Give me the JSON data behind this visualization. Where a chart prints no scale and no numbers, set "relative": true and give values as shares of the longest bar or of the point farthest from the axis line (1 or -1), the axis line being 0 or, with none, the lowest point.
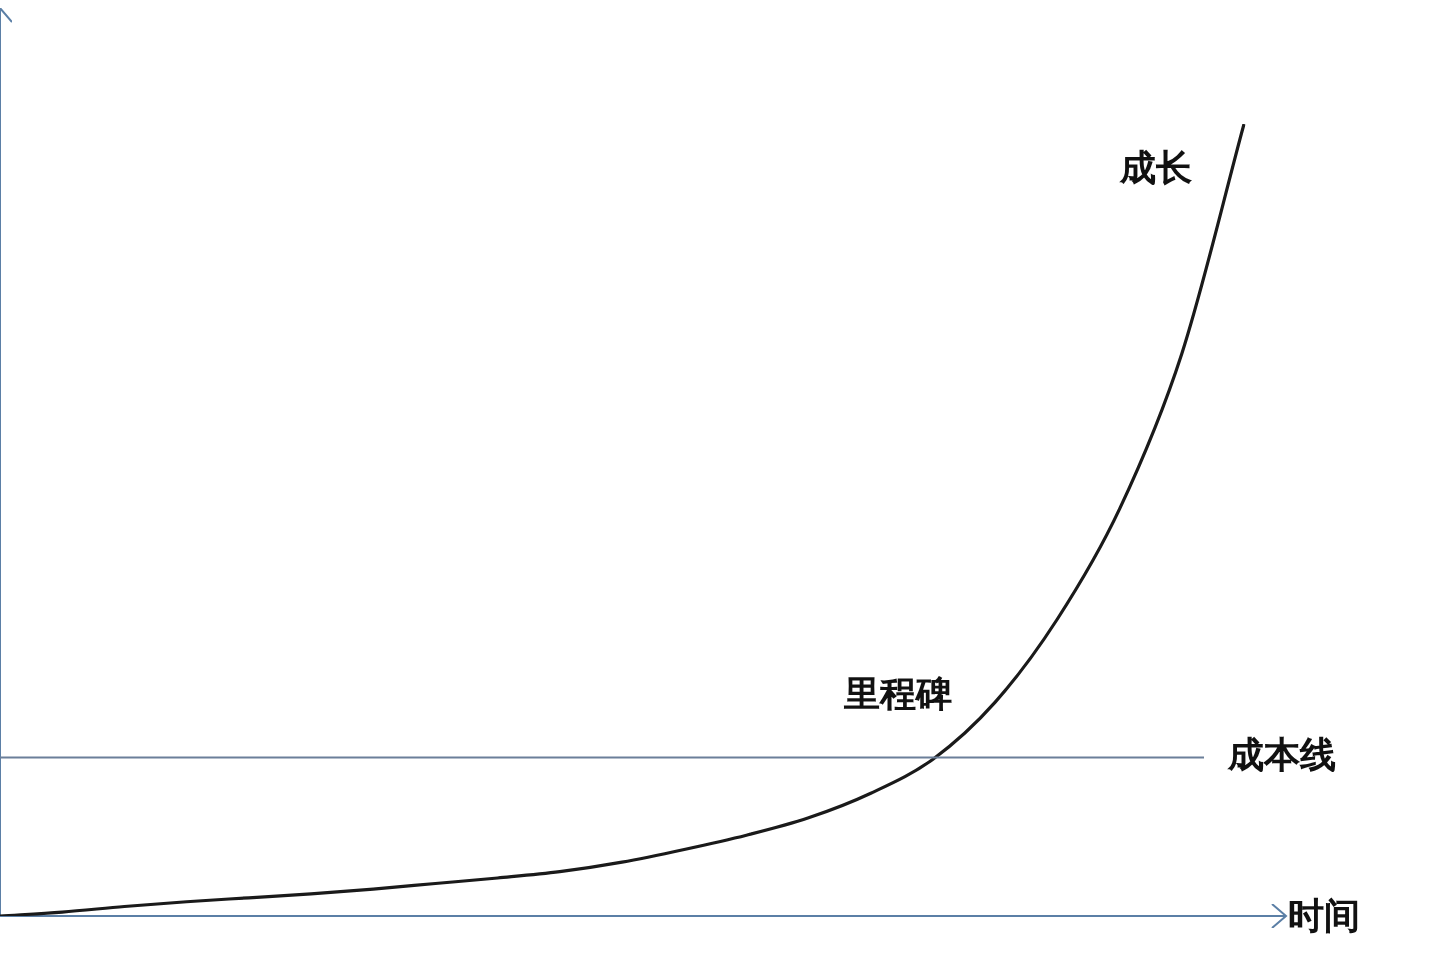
{
  "chart_data": {
    "type": "line",
    "relative": true,
    "xlabel": "时间",
    "categories": [
      null,
      null,
      null,
      null,
      null,
      null,
      null,
      null,
      null,
      null,
      null,
      null,
      null,
      null,
      null,
      null,
      null,
      null,
      null,
      null,
      null
    ],
    "series": [
      {
        "color": "#1a1a1a",
        "values": [
          0,
          0.005,
          0.012,
          0.018,
          0.023,
          0.028,
          0.034,
          0.041,
          0.048,
          0.056,
          0.068,
          0.084,
          0.102,
          0.124,
          0.155,
          0.198,
          0.27,
          0.375,
          0.514,
          0.71,
          1
        ]
      }
    ],
    "ref_lines": [
      {
        "axis": "y",
        "value": 0.2,
        "label": "成本线",
        "color": "#6b7f99"
      }
    ],
    "annotations": [
      "成长",
      "里程碑"
    ],
    "marker": "none",
    "grid": false,
    "legend": false
  }
}
